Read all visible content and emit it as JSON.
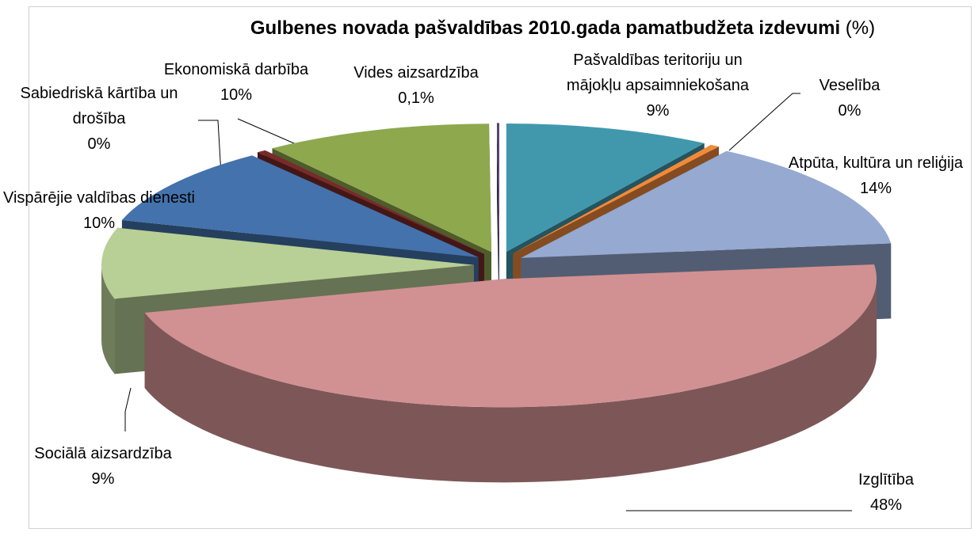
{
  "chart_data": {
    "type": "pie3d",
    "title": "Gulbenes novada pašvaldības 2010.gada pamatbudžeta izdevumi",
    "title_unit": "(%)",
    "categories": [
      "Pašvaldības teritoriju un mājokļu apsaimniekošana",
      "Veselība",
      "Atpūta, kultūra un reliģija",
      "Izglītība",
      "Sociālā aizsardzība",
      "Vispārējie valdības dienesti",
      "Sabiedriskā kārtība un drošība",
      "Ekonomiskā darbība",
      "Vides aizsardzība"
    ],
    "values": [
      9,
      0.4,
      14,
      48,
      9,
      10,
      0.4,
      10,
      0.1
    ],
    "value_labels": [
      "9%",
      "0%",
      "14%",
      "48%",
      "9%",
      "10%",
      "0%",
      "10%",
      "0,1%"
    ],
    "colors": [
      "#4198ad",
      "#f08a3a",
      "#95a9d1",
      "#d19192",
      "#b8cf96",
      "#4472ac",
      "#7a2a2a",
      "#8ea84e",
      "#4b3d68"
    ]
  }
}
